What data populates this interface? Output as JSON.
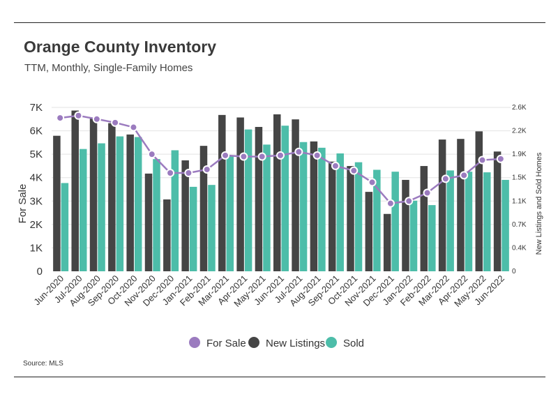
{
  "chart_data": {
    "type": "bar",
    "title": "Orange County Inventory",
    "subtitle": "TTM, Monthly, Single-Family Homes",
    "source": "Source:  MLS",
    "ylabel_left": "For Sale",
    "ylabel_right": "New Listings and Sold Homes",
    "left_ticks": [
      "0",
      "1K",
      "2K",
      "3K",
      "4K",
      "5K",
      "6K",
      "7K"
    ],
    "right_ticks": [
      "0",
      "0.4K",
      "0.7K",
      "1.1K",
      "1.5K",
      "1.9K",
      "2.2K",
      "2.6K"
    ],
    "left_ylim": [
      0,
      7000
    ],
    "right_ylim": [
      0,
      2600
    ],
    "grid": true,
    "legend_position": "bottom",
    "categories": [
      "Jun-2020",
      "Jul-2020",
      "Aug-2020",
      "Sep-2020",
      "Oct-2020",
      "Nov-2020",
      "Dec-2020",
      "Jan-2021",
      "Feb-2021",
      "Mar-2021",
      "Apr-2021",
      "May-2021",
      "Jun-2021",
      "Jul-2021",
      "Aug-2021",
      "Sep-2021",
      "Oct-2021",
      "Nov-2021",
      "Dec-2021",
      "Jan-2022",
      "Feb-2022",
      "Mar-2022",
      "Apr-2022",
      "May-2022",
      "Jun-2022"
    ],
    "series": [
      {
        "name": "For Sale",
        "kind": "line",
        "axis": "left",
        "color": "#9b7bbf",
        "values": [
          6550,
          6650,
          6500,
          6350,
          6150,
          5000,
          4200,
          4200,
          4350,
          4950,
          4900,
          4900,
          4950,
          5100,
          4950,
          4500,
          4300,
          3800,
          2900,
          3000,
          3350,
          3950,
          4100,
          4750,
          4800
        ]
      },
      {
        "name": "New Listings",
        "kind": "bar",
        "axis": "right",
        "color": "#454545",
        "values": [
          2150,
          2550,
          2430,
          2350,
          2170,
          1550,
          1140,
          1760,
          1990,
          2480,
          2440,
          2290,
          2490,
          2410,
          2060,
          1740,
          1670,
          1260,
          910,
          1450,
          1670,
          2090,
          2100,
          2220,
          1900
        ]
      },
      {
        "name": "Sold",
        "kind": "bar",
        "axis": "right",
        "color": "#4dbda9",
        "values": [
          1400,
          1940,
          2030,
          2140,
          2130,
          1780,
          1920,
          1340,
          1370,
          1830,
          2250,
          2010,
          2310,
          2050,
          1960,
          1870,
          1730,
          1610,
          1580,
          1120,
          1050,
          1600,
          1580,
          1570,
          1450
        ]
      }
    ]
  }
}
